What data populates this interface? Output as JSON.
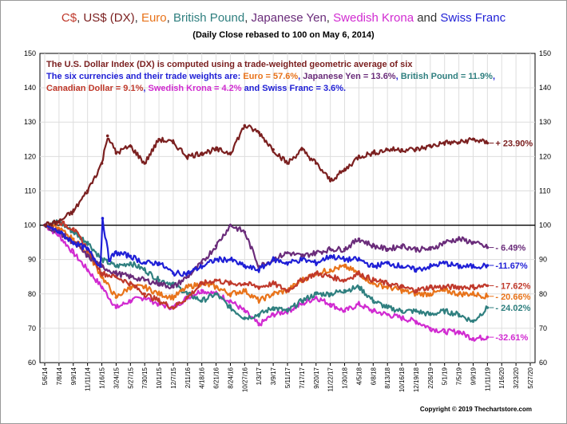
{
  "chart_data": {
    "type": "line",
    "title_parts": [
      {
        "text": "C$",
        "color": "#c0392b"
      },
      {
        "text": ", ",
        "color": "#333333"
      },
      {
        "text": "US$ (DX)",
        "color": "#7b2020"
      },
      {
        "text": ", ",
        "color": "#333333"
      },
      {
        "text": "Euro",
        "color": "#e8731a"
      },
      {
        "text": ", ",
        "color": "#333333"
      },
      {
        "text": "British Pound",
        "color": "#2f7f7f"
      },
      {
        "text": ", ",
        "color": "#333333"
      },
      {
        "text": "Japanese Yen",
        "color": "#6a2c7a"
      },
      {
        "text": ", ",
        "color": "#333333"
      },
      {
        "text": "Swedish Krona",
        "color": "#d12bd1"
      },
      {
        "text": " and ",
        "color": "#333333"
      },
      {
        "text": "Swiss Franc",
        "color": "#1f1fd6"
      }
    ],
    "subtitle": "(Daily Close rebased to 100 on May 6, 2014)",
    "annotation": [
      [
        {
          "text": "The U.S. Dollar Index (DX) is computed using a trade-weighted geometric average of six",
          "color": "#7b2020"
        }
      ],
      [
        {
          "text": "The six currencies and their trade weights are: ",
          "color": "#1f1fd6"
        },
        {
          "text": "Euro = 57.6%",
          "color": "#e8731a"
        },
        {
          "text": ", ",
          "color": "#1f1fd6"
        },
        {
          "text": "Japanese Yen = 13.6%",
          "color": "#6a2c7a"
        },
        {
          "text": ", ",
          "color": "#1f1fd6"
        },
        {
          "text": "British Pound = 11.9%",
          "color": "#2f7f7f"
        },
        {
          "text": ",",
          "color": "#1f1fd6"
        }
      ],
      [
        {
          "text": "Canadian Dollar = 9.1%",
          "color": "#c0392b"
        },
        {
          "text": ", ",
          "color": "#1f1fd6"
        },
        {
          "text": "Swedish Krona = 4.2%",
          "color": "#d12bd1"
        },
        {
          "text": " and ",
          "color": "#1f1fd6"
        },
        {
          "text": "Swiss Franc = 3.6%.",
          "color": "#1f1fd6"
        }
      ]
    ],
    "ylim": [
      60,
      150
    ],
    "yticks": [
      60,
      70,
      80,
      90,
      100,
      110,
      120,
      130,
      140,
      150
    ],
    "reference_line": 100,
    "x_labels": [
      "5/6/14",
      "7/8/14",
      "9/9/14",
      "11/11/14",
      "1/16/15",
      "3/24/15",
      "5/27/15",
      "7/30/15",
      "10/1/15",
      "12/7/15",
      "2/11/16",
      "4/18/16",
      "6/21/16",
      "8/24/16",
      "10/27/16",
      "1/3/17",
      "3/9/17",
      "5/11/17",
      "7/17/17",
      "9/20/17",
      "11/22/17",
      "1/30/18",
      "4/5/18",
      "6/8/18",
      "8/13/18",
      "10/16/18",
      "12/19/18",
      "2/26/19",
      "5/1/19",
      "7/5/19",
      "9/9/19",
      "11/11/19",
      "1/16/20",
      "3/23/20",
      "5/27/20"
    ],
    "x_index_range": [
      0,
      34
    ],
    "series": [
      {
        "name": "US$ (DX)",
        "color": "#7b2020",
        "final_label": "+ 23.90%",
        "x": [
          0,
          1,
          2,
          3,
          4,
          4.4,
          5,
          6,
          7,
          8,
          9,
          10,
          11,
          12,
          13,
          14,
          15,
          16,
          17,
          18,
          19,
          20,
          21,
          22,
          23,
          24,
          25,
          26,
          27,
          28,
          29,
          30,
          31
        ],
        "values": [
          100,
          101,
          104,
          110,
          118,
          126,
          121,
          123,
          118,
          125,
          124,
          120,
          121,
          122,
          121,
          129,
          127,
          122,
          118,
          122,
          118,
          113,
          116,
          120,
          121,
          122,
          122,
          122,
          123,
          124,
          124,
          125,
          123.9
        ]
      },
      {
        "name": "Swiss Franc",
        "color": "#1f1fd6",
        "final_label": "-11.67%",
        "x": [
          0,
          1,
          2,
          3,
          3.9,
          4.05,
          4.5,
          5,
          6,
          7,
          8,
          9,
          10,
          11,
          12,
          13,
          14,
          15,
          16,
          17,
          18,
          19,
          20,
          21,
          22,
          23,
          24,
          25,
          26,
          27,
          28,
          29,
          30,
          31
        ],
        "values": [
          100,
          98,
          95,
          93,
          88,
          102,
          90,
          92,
          91,
          89,
          89,
          86,
          86,
          88,
          90,
          90,
          88,
          87,
          90,
          89,
          90,
          89,
          91,
          90,
          90,
          88,
          89,
          88,
          87,
          88,
          89,
          88,
          88,
          88.3
        ]
      },
      {
        "name": "Japanese Yen",
        "color": "#6a2c7a",
        "final_label": "- 6.49%",
        "x": [
          0,
          1,
          2,
          3,
          4,
          5,
          6,
          7,
          8,
          9,
          10,
          11,
          12,
          13,
          14,
          15,
          16,
          17,
          18,
          19,
          20,
          21,
          22,
          23,
          24,
          25,
          26,
          27,
          28,
          29,
          30,
          31
        ],
        "values": [
          100,
          98,
          95,
          91,
          88,
          86,
          85,
          84,
          83,
          82,
          85,
          89,
          94,
          100,
          98,
          88,
          90,
          92,
          91,
          92,
          93,
          93,
          96,
          94,
          93,
          94,
          93,
          93,
          95,
          96,
          95,
          93.5
        ]
      },
      {
        "name": "C$",
        "color": "#c0392b",
        "final_label": "- 17.62%",
        "x": [
          0,
          1,
          2,
          3,
          4,
          5,
          6,
          7,
          8,
          9,
          10,
          11,
          12,
          13,
          14,
          15,
          16,
          17,
          18,
          19,
          20,
          21,
          22,
          23,
          24,
          25,
          26,
          27,
          28,
          29,
          30,
          31
        ],
        "values": [
          100,
          101,
          99,
          93,
          86,
          85,
          83,
          80,
          78,
          76,
          79,
          83,
          84,
          83,
          83,
          82,
          83,
          81,
          84,
          86,
          85,
          84,
          86,
          84,
          83,
          82,
          81,
          82,
          82,
          82,
          82,
          82.4
        ]
      },
      {
        "name": "Euro",
        "color": "#e8731a",
        "final_label": "- 20.66%",
        "x": [
          0,
          1,
          2,
          3,
          4,
          5,
          6,
          7,
          8,
          9,
          10,
          11,
          12,
          13,
          14,
          15,
          16,
          17,
          18,
          19,
          20,
          21,
          22,
          23,
          24,
          25,
          26,
          27,
          28,
          29,
          30,
          31
        ],
        "values": [
          100,
          99,
          96,
          92,
          85,
          79,
          82,
          82,
          80,
          79,
          82,
          83,
          82,
          80,
          81,
          78,
          80,
          81,
          84,
          86,
          87,
          88,
          86,
          83,
          82,
          81,
          80,
          80,
          81,
          80,
          80,
          79.3
        ]
      },
      {
        "name": "British Pound",
        "color": "#2f7f7f",
        "final_label": "- 24.02%",
        "x": [
          0,
          1,
          2,
          3,
          4,
          5,
          6,
          7,
          8,
          9,
          10,
          11,
          12,
          13,
          14,
          15,
          16,
          17,
          18,
          19,
          20,
          21,
          22,
          23,
          24,
          25,
          26,
          27,
          28,
          29,
          30,
          31
        ],
        "values": [
          100,
          101,
          98,
          95,
          90,
          88,
          89,
          87,
          84,
          83,
          80,
          78,
          80,
          76,
          73,
          74,
          76,
          75,
          78,
          80,
          80,
          81,
          82,
          78,
          76,
          75,
          75,
          74,
          75,
          74,
          72,
          76
        ]
      },
      {
        "name": "Swedish Krona",
        "color": "#d12bd1",
        "final_label": "-32.61%",
        "x": [
          0,
          1,
          2,
          3,
          4,
          5,
          6,
          7,
          8,
          9,
          10,
          11,
          12,
          13,
          14,
          15,
          16,
          17,
          18,
          19,
          20,
          21,
          22,
          23,
          24,
          25,
          26,
          27,
          28,
          29,
          30,
          31
        ],
        "values": [
          100,
          97,
          92,
          87,
          82,
          76,
          78,
          79,
          77,
          76,
          79,
          81,
          80,
          78,
          75,
          71,
          74,
          75,
          77,
          79,
          77,
          75,
          77,
          75,
          74,
          73,
          72,
          70,
          69,
          69,
          67,
          67.4
        ]
      }
    ],
    "copyright": "Copyright © 2019 Thechartstore.com"
  }
}
